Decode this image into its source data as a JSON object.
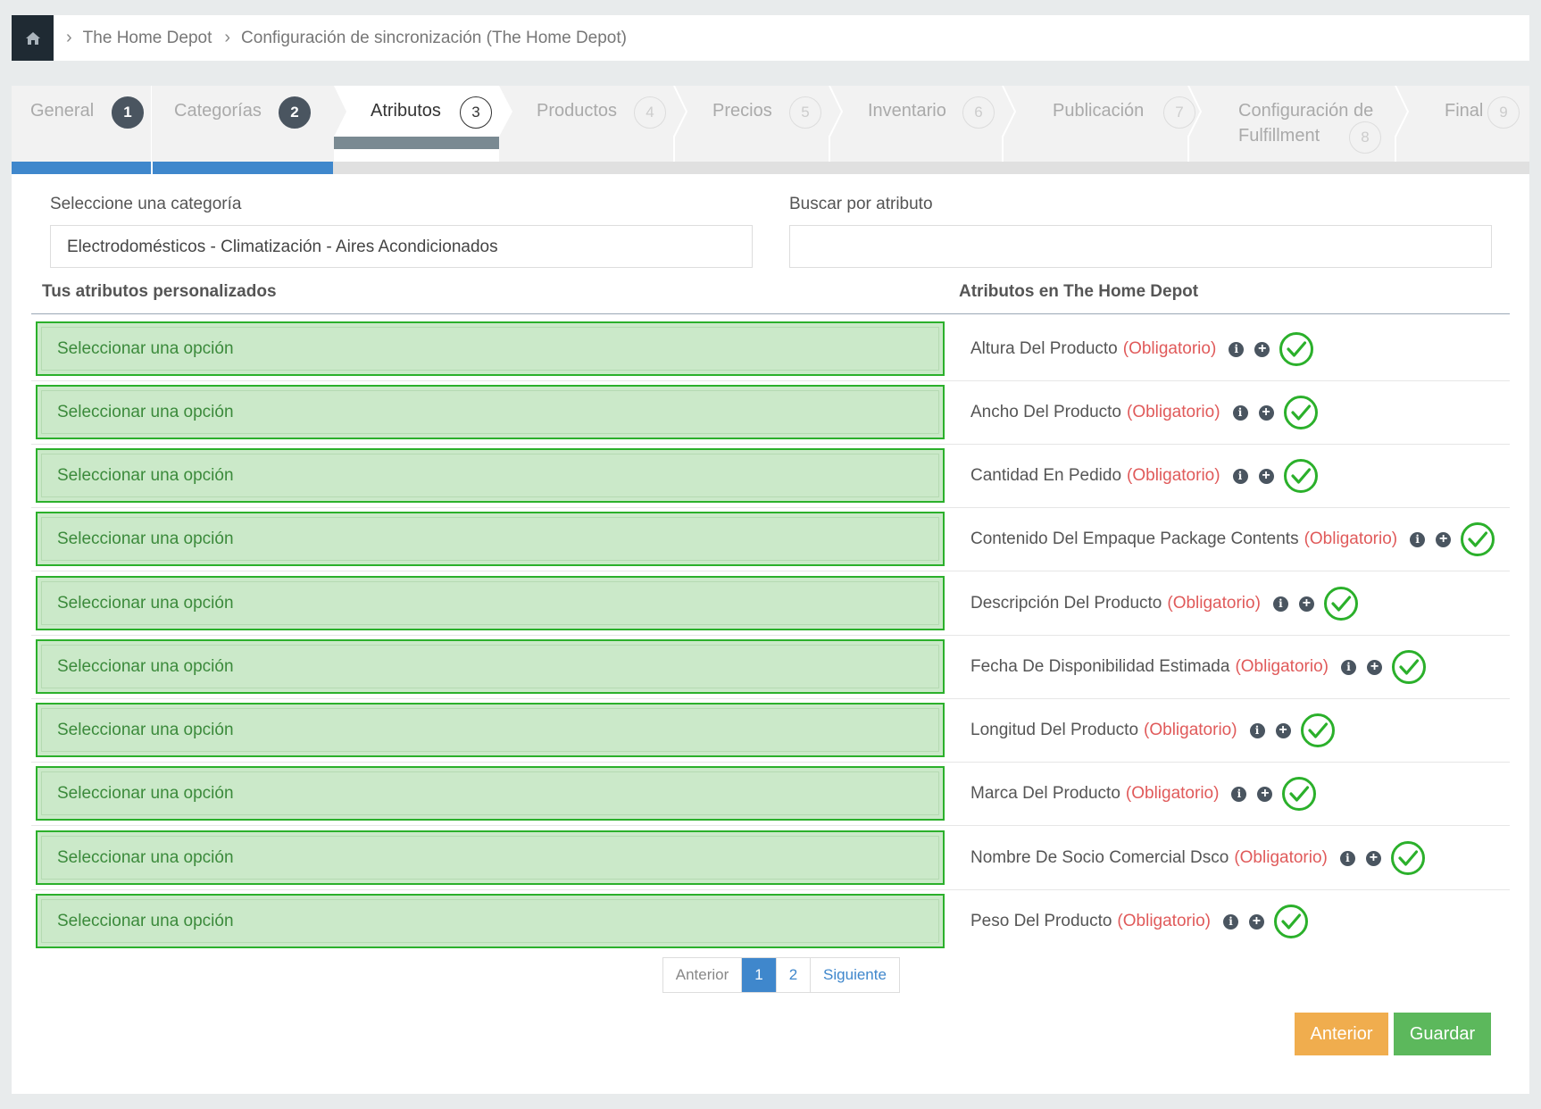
{
  "breadcrumb": {
    "items": [
      "The Home Depot",
      "Configuración de sincronización (The Home Depot)"
    ]
  },
  "steps": [
    {
      "label": "General",
      "num": "1",
      "state": "done"
    },
    {
      "label": "Categorías",
      "num": "2",
      "state": "done"
    },
    {
      "label": "Atributos",
      "num": "3",
      "state": "current"
    },
    {
      "label": "Productos",
      "num": "4",
      "state": "pending"
    },
    {
      "label": "Precios",
      "num": "5",
      "state": "pending"
    },
    {
      "label": "Inventario",
      "num": "6",
      "state": "pending"
    },
    {
      "label": "Publicación",
      "num": "7",
      "state": "pending"
    },
    {
      "label": "Configuración de",
      "label2": "Fulfillment",
      "num": "8",
      "state": "pending"
    },
    {
      "label": "Final",
      "num": "9",
      "state": "pending"
    }
  ],
  "form": {
    "category_label": "Seleccione una categoría",
    "category_value": "Electrodomésticos - Climatización - Aires Acondicionados",
    "search_label": "Buscar por atributo",
    "search_value": ""
  },
  "table": {
    "left_header": "Tus atributos personalizados",
    "right_header": "Atributos en The Home Depot",
    "select_placeholder": "Seleccionar una opción",
    "required_text": "(Obligatorio)",
    "rows": [
      {
        "attribute": "Altura Del Producto",
        "select": "Seleccionar una opción",
        "required": "(Obligatorio)"
      },
      {
        "attribute": "Ancho Del Producto",
        "select": "Seleccionar una opción",
        "required": "(Obligatorio)"
      },
      {
        "attribute": "Cantidad En Pedido",
        "select": "Seleccionar una opción",
        "required": "(Obligatorio)"
      },
      {
        "attribute": "Contenido Del Empaque Package Contents",
        "select": "Seleccionar una opción",
        "required": "(Obligatorio)"
      },
      {
        "attribute": "Descripción Del Producto",
        "select": "Seleccionar una opción",
        "required": "(Obligatorio)"
      },
      {
        "attribute": "Fecha De Disponibilidad Estimada",
        "select": "Seleccionar una opción",
        "required": "(Obligatorio)"
      },
      {
        "attribute": "Longitud Del Producto",
        "select": "Seleccionar una opción",
        "required": "(Obligatorio)"
      },
      {
        "attribute": "Marca Del Producto",
        "select": "Seleccionar una opción",
        "required": "(Obligatorio)"
      },
      {
        "attribute": "Nombre De Socio Comercial Dsco",
        "select": "Seleccionar una opción",
        "required": "(Obligatorio)"
      },
      {
        "attribute": "Peso Del Producto",
        "select": "Seleccionar una opción",
        "required": "(Obligatorio)"
      }
    ]
  },
  "pagination": {
    "prev": "Anterior",
    "pages": [
      "1",
      "2"
    ],
    "active_page": "1",
    "next": "Siguiente"
  },
  "buttons": {
    "previous": "Anterior",
    "save": "Guardar"
  },
  "colors": {
    "accent_blue": "#3f87cc",
    "success_green": "#2bb02b",
    "warning_orange": "#f0ad4e",
    "save_green": "#5cb85c",
    "required_red": "#e05a5a"
  }
}
